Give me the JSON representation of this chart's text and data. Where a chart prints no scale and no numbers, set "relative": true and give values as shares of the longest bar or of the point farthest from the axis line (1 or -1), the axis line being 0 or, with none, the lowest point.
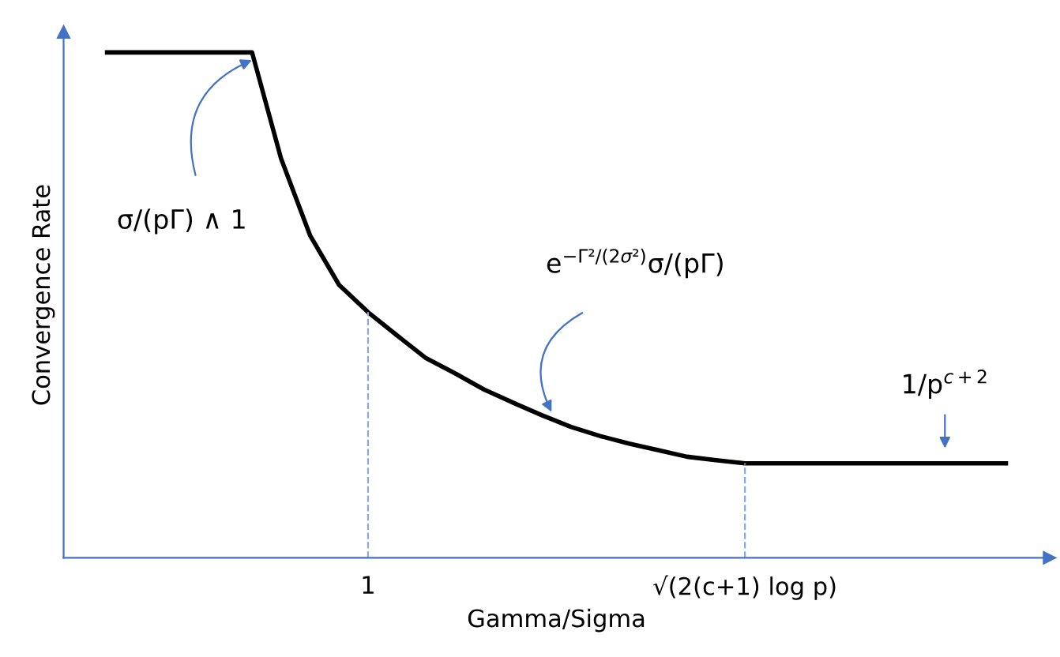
{
  "chart_data": {
    "type": "line",
    "relative": true,
    "xlabel": "Gamma/Sigma",
    "ylabel": "Convergence Rate",
    "categories": [
      null,
      null,
      null,
      null,
      null,
      null,
      null,
      null,
      null,
      null,
      "1",
      null,
      null,
      null,
      null,
      null,
      null,
      null,
      null,
      null,
      null,
      null,
      null,
      "√(2(c+1) log p)",
      null,
      null,
      null,
      null,
      null,
      null,
      null,
      null,
      null,
      null
    ],
    "series": [
      {
        "color": "#000000",
        "values": [
          null,
          1,
          1,
          1,
          1,
          1,
          1,
          0.79,
          0.638,
          0.54,
          0.486,
          0.44,
          0.395,
          0.365,
          0.333,
          0.307,
          0.282,
          0.259,
          0.241,
          0.226,
          0.213,
          0.2,
          0.193,
          0.187,
          0.187,
          0.187,
          0.187,
          0.187,
          0.187,
          0.187,
          0.187,
          0.187,
          0.187,
          null
        ]
      }
    ],
    "ref_lines": [
      {
        "axis": "x",
        "value": "1",
        "color": "#8fa8dc",
        "line_style": "dashed"
      },
      {
        "axis": "x",
        "value": "√(2(c+1) log p)",
        "color": "#8fa8dc",
        "line_style": "dashed"
      }
    ],
    "annotations": [
      "σ/(pΓ) ∧ 1",
      "e$^{−Γ²/(2σ²)}$σ/(pΓ)",
      "1/p$^{c+2}$"
    ],
    "marker": "none",
    "line_style": "solid",
    "grid": false,
    "legend": false
  }
}
